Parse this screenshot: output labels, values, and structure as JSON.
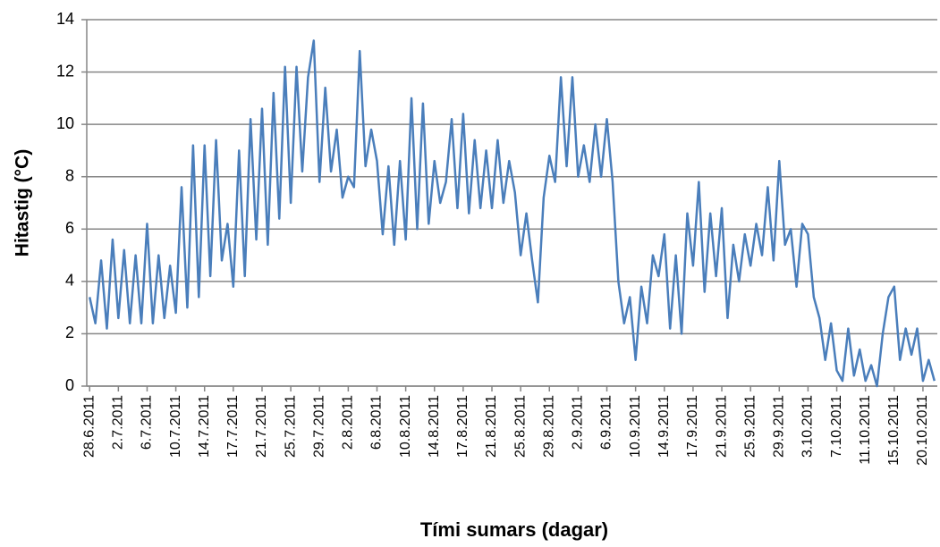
{
  "chart_data": {
    "type": "line",
    "ylabel": "Hitastig (°C)",
    "xlabel": "Tími sumars (dagar)",
    "categories": [
      "28.6.2011",
      null,
      null,
      null,
      null,
      "2.7.2011",
      null,
      null,
      null,
      null,
      "6.7.2011",
      null,
      null,
      null,
      null,
      "10.7.2011",
      null,
      null,
      null,
      null,
      "14.7.2011",
      null,
      null,
      null,
      null,
      "17.7.2011",
      null,
      null,
      null,
      null,
      "21.7.2011",
      null,
      null,
      null,
      null,
      "25.7.2011",
      null,
      null,
      null,
      null,
      "29.7.2011",
      null,
      null,
      null,
      null,
      "2.8.2011",
      null,
      null,
      null,
      null,
      "6.8.2011",
      null,
      null,
      null,
      null,
      "10.8.2011",
      null,
      null,
      null,
      null,
      "14.8.2011",
      null,
      null,
      null,
      null,
      "17.8.2011",
      null,
      null,
      null,
      null,
      "21.8.2011",
      null,
      null,
      null,
      null,
      "25.8.2011",
      null,
      null,
      null,
      null,
      "29.8.2011",
      null,
      null,
      null,
      null,
      "2.9.2011",
      null,
      null,
      null,
      null,
      "6.9.2011",
      null,
      null,
      null,
      null,
      "10.9.2011",
      null,
      null,
      null,
      null,
      "14.9.2011",
      null,
      null,
      null,
      null,
      "17.9.2011",
      null,
      null,
      null,
      null,
      "21.9.2011",
      null,
      null,
      null,
      null,
      "25.9.2011",
      null,
      null,
      null,
      null,
      "29.9.2011",
      null,
      null,
      null,
      null,
      "3.10.2011",
      null,
      null,
      null,
      null,
      "7.10.2011",
      null,
      null,
      null,
      null,
      "11.10.2011",
      null,
      null,
      null,
      null,
      "15.10.2011",
      null,
      null,
      null,
      null,
      "20.10.2011",
      null,
      null
    ],
    "series": [
      {
        "color": "#4a7ebb",
        "values": [
          3.4,
          2.4,
          4.8,
          2.2,
          5.6,
          2.6,
          5.2,
          2.4,
          5.0,
          2.4,
          6.2,
          2.4,
          5.0,
          2.6,
          4.6,
          2.8,
          7.6,
          3.0,
          9.2,
          3.4,
          9.2,
          4.2,
          9.4,
          4.8,
          6.2,
          3.8,
          9.0,
          4.2,
          10.2,
          5.6,
          10.6,
          5.4,
          11.2,
          6.4,
          12.2,
          7.0,
          12.2,
          8.2,
          11.8,
          13.2,
          7.8,
          11.4,
          8.2,
          9.8,
          7.2,
          8.0,
          7.6,
          12.8,
          8.4,
          9.8,
          8.6,
          5.8,
          8.4,
          5.4,
          8.6,
          5.6,
          11.0,
          6.0,
          10.8,
          6.2,
          8.6,
          7.0,
          7.8,
          10.2,
          6.8,
          10.4,
          6.6,
          9.4,
          6.8,
          9.0,
          6.8,
          9.4,
          7.0,
          8.6,
          7.4,
          5.0,
          6.6,
          4.8,
          3.2,
          7.2,
          8.8,
          7.8,
          11.8,
          8.4,
          11.8,
          8.0,
          9.2,
          7.8,
          10.0,
          8.0,
          10.2,
          7.8,
          4.0,
          2.4,
          3.4,
          1.0,
          3.8,
          2.4,
          5.0,
          4.2,
          5.8,
          2.2,
          5.0,
          2.0,
          6.6,
          4.6,
          7.8,
          3.6,
          6.6,
          4.2,
          6.8,
          2.6,
          5.4,
          4.0,
          5.8,
          4.6,
          6.2,
          5.0,
          7.6,
          4.8,
          8.6,
          5.4,
          6.0,
          3.8,
          6.2,
          5.8,
          3.4,
          2.6,
          1.0,
          2.4,
          0.6,
          0.2,
          2.2,
          0.4,
          1.4,
          0.2,
          0.8,
          0,
          2.0,
          3.4,
          3.8,
          1.0,
          2.2,
          1.2,
          2.2,
          0.2,
          1.0,
          0.2
        ]
      }
    ],
    "ylim": [
      0,
      14
    ],
    "yticks": [
      0,
      2,
      4,
      6,
      8,
      10,
      12,
      14
    ],
    "grid": true
  }
}
